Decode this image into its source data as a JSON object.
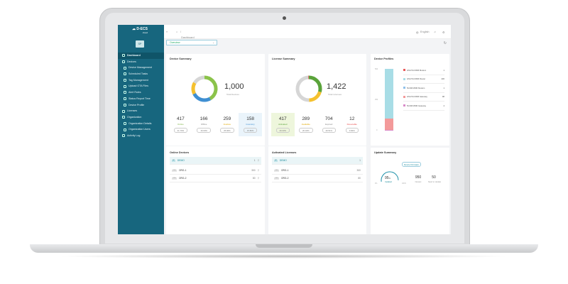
{
  "brand": {
    "name": "D-ECS",
    "sub": "cloud",
    "avatar": "SP"
  },
  "sidebar": {
    "items": [
      {
        "label": "Dashboard",
        "icon": "dashboard-icon",
        "active": true
      },
      {
        "label": "Devices",
        "icon": "devices-icon"
      },
      {
        "label": "Device Management",
        "icon": "list-icon",
        "sub": true
      },
      {
        "label": "Scheduled Tasks",
        "icon": "calendar-icon",
        "sub": true
      },
      {
        "label": "Tag Management",
        "icon": "tag-icon",
        "sub": true
      },
      {
        "label": "Upload OTA Files",
        "icon": "upload-icon",
        "sub": true
      },
      {
        "label": "Alert Rules",
        "icon": "alert-icon",
        "sub": true
      },
      {
        "label": "Status Report Time",
        "icon": "clock-icon",
        "sub": true
      },
      {
        "label": "Device Profile",
        "icon": "folder-icon",
        "sub": true
      },
      {
        "label": "Licenses",
        "icon": "key-icon"
      },
      {
        "label": "Organization",
        "icon": "organization-icon"
      },
      {
        "label": "Organization Details",
        "icon": "info-icon",
        "sub": true
      },
      {
        "label": "Organization Users",
        "icon": "user-icon",
        "sub": true
      },
      {
        "label": "Activity Log",
        "icon": "log-icon"
      }
    ]
  },
  "header": {
    "breadcrumb": "Dashboard",
    "language": "English"
  },
  "selector": {
    "value": "Overview"
  },
  "device_summary": {
    "title": "Device Summary",
    "total": "1,000",
    "total_label": "Total Devices",
    "segments": [
      {
        "value": 417,
        "color": "#8bc34a"
      },
      {
        "value": 259,
        "color": "#3f8fd2"
      },
      {
        "value": 158,
        "color": "#f5c12e"
      },
      {
        "value": 166,
        "color": "#d6d6d6"
      }
    ],
    "stats": [
      {
        "n": "417",
        "label": "Online",
        "pct": "41.70%",
        "color": "#7cb342"
      },
      {
        "n": "166",
        "label": "Offline",
        "pct": "16.60%",
        "color": "#888888"
      },
      {
        "n": "259",
        "label": "Inactive",
        "pct": "25.90%",
        "color": "#e0a800"
      },
      {
        "n": "158",
        "label": "Inventory",
        "pct": "15.80%",
        "color": "#3f8fd2"
      }
    ]
  },
  "license_summary": {
    "title": "License Summary",
    "total": "1,422",
    "total_label": "Total Licenses",
    "segments": [
      {
        "value": 417,
        "color": "#5aa33a"
      },
      {
        "value": 289,
        "color": "#f5c12e"
      },
      {
        "value": 704,
        "color": "#d6d6d6"
      },
      {
        "value": 12,
        "color": "#e84c4c"
      }
    ],
    "stats": [
      {
        "n": "417",
        "label": "Activated",
        "pct": "29.33%",
        "color": "#5aa33a"
      },
      {
        "n": "289",
        "label": "Available",
        "pct": "20.32%",
        "color": "#e0a800"
      },
      {
        "n": "704",
        "label": "Expired",
        "pct": "49.51%",
        "color": "#888888"
      },
      {
        "n": "12",
        "label": "Revocable",
        "pct": "0.84%",
        "color": "#e84c4c"
      }
    ]
  },
  "device_profiles": {
    "title": "Device Profiles",
    "axis": [
      "500",
      "250",
      "0"
    ],
    "items": [
      {
        "label": "HS/LTE MDM Modem",
        "value": 1,
        "color": "#e85b5b"
      },
      {
        "label": "HS/LTE MDM Router",
        "value": 430,
        "color": "#a8dde6"
      },
      {
        "label": "5GNR MDM Modem",
        "value": 1,
        "color": "#8fc0ea"
      },
      {
        "label": "HS/LTE MDM Gateway",
        "value": 98,
        "color": "#f39a9a"
      },
      {
        "label": "5GNR MDM Gateway",
        "value": 4,
        "color": "#d98ac9"
      }
    ]
  },
  "online_devices": {
    "title": "Online Devices",
    "rows": [
      {
        "badge": "SP",
        "name": "DEMO",
        "value": "1"
      },
      {
        "badge": "ORG",
        "name": "ORG-1",
        "value": "300"
      },
      {
        "badge": "ORG",
        "name": "ORG-2",
        "value": "80"
      }
    ]
  },
  "activated_licenses": {
    "title": "Activated Licenses",
    "rows": [
      {
        "badge": "SP",
        "name": "DEMO",
        "value": "1"
      },
      {
        "badge": "ORG",
        "name": "ORG-1",
        "value": "300"
      },
      {
        "badge": "ORG",
        "name": "ORG-2",
        "value": "80"
      }
    ]
  },
  "update_summary": {
    "title": "Update Summary",
    "tag": "Device Firmware",
    "gauge_pct": 95,
    "gauge_value": "95",
    "gauge_unit": "%",
    "gauge_label": "Updated",
    "min": "0%",
    "max": "100%",
    "newest": "950",
    "newest_label": "Newest",
    "need": "50",
    "need_label": "Need to Update"
  }
}
